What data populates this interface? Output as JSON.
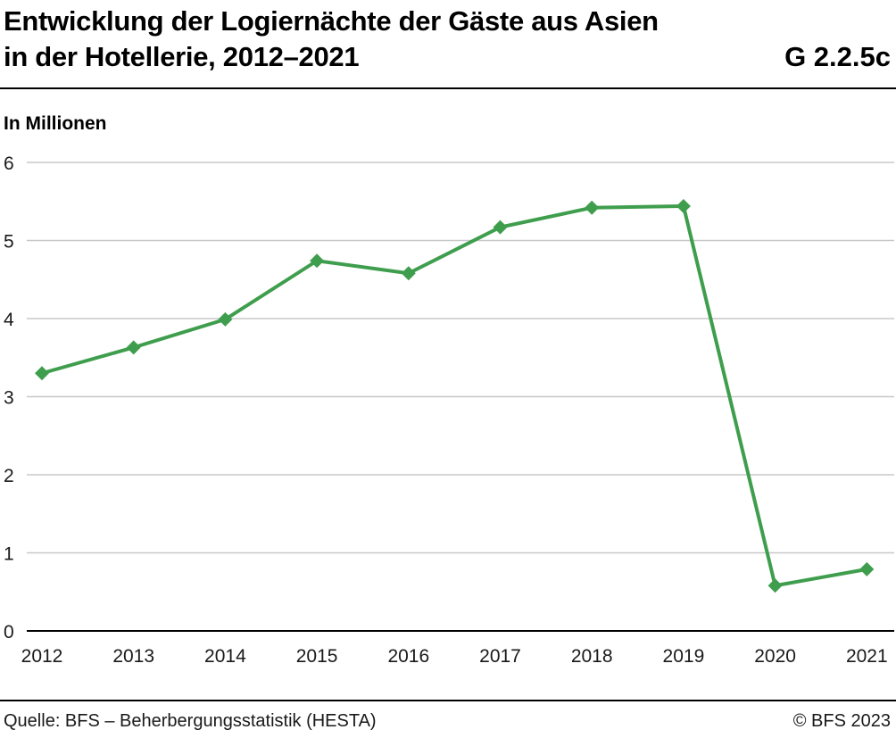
{
  "header": {
    "title_line1": "Entwicklung der Logiernächte der Gäste aus Asien",
    "title_line2": "in der Hotellerie, 2012–2021",
    "code": "G 2.2.5c"
  },
  "footer": {
    "source": "Quelle: BFS – Beherbergungsstatistik (HESTA)",
    "copyright": "© BFS 2023"
  },
  "chart_data": {
    "type": "line",
    "title": "Entwicklung der Logiernächte der Gäste aus Asien in der Hotellerie, 2012–2021",
    "xlabel": "",
    "ylabel": "In Millionen",
    "categories": [
      "2012",
      "2013",
      "2014",
      "2015",
      "2016",
      "2017",
      "2018",
      "2019",
      "2020",
      "2021"
    ],
    "series": [
      {
        "values": [
          3.3,
          3.63,
          3.99,
          4.74,
          4.58,
          5.17,
          5.42,
          5.44,
          0.58,
          0.79
        ]
      }
    ],
    "ylim": [
      0,
      6
    ],
    "yticks": [
      0,
      1,
      2,
      3,
      4,
      5,
      6
    ],
    "grid": true,
    "line_color": "#3f9e4d"
  }
}
